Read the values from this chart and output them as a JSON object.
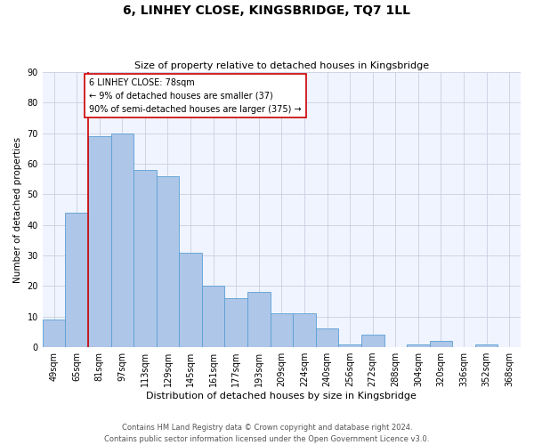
{
  "title": "6, LINHEY CLOSE, KINGSBRIDGE, TQ7 1LL",
  "subtitle": "Size of property relative to detached houses in Kingsbridge",
  "xlabel": "Distribution of detached houses by size in Kingsbridge",
  "ylabel": "Number of detached properties",
  "categories": [
    "49sqm",
    "65sqm",
    "81sqm",
    "97sqm",
    "113sqm",
    "129sqm",
    "145sqm",
    "161sqm",
    "177sqm",
    "193sqm",
    "209sqm",
    "224sqm",
    "240sqm",
    "256sqm",
    "272sqm",
    "288sqm",
    "304sqm",
    "320sqm",
    "336sqm",
    "352sqm",
    "368sqm"
  ],
  "values": [
    9,
    44,
    69,
    70,
    58,
    56,
    31,
    20,
    16,
    18,
    11,
    11,
    6,
    1,
    4,
    0,
    1,
    2,
    0,
    1,
    0
  ],
  "bar_color": "#aec6e8",
  "bar_edge_color": "#5a9fd4",
  "vline_x_index": 1.5,
  "vline_color": "#cc0000",
  "annotation_text": "6 LINHEY CLOSE: 78sqm\n← 9% of detached houses are smaller (37)\n90% of semi-detached houses are larger (375) →",
  "annotation_box_color": "#ffffff",
  "annotation_box_edge": "#cc0000",
  "ylim": [
    0,
    90
  ],
  "yticks": [
    0,
    10,
    20,
    30,
    40,
    50,
    60,
    70,
    80,
    90
  ],
  "footer": "Contains HM Land Registry data © Crown copyright and database right 2024.\nContains public sector information licensed under the Open Government Licence v3.0.",
  "bg_color": "#f0f4ff",
  "grid_color": "#c8d0e0",
  "title_fontsize": 10,
  "subtitle_fontsize": 8,
  "xlabel_fontsize": 8,
  "ylabel_fontsize": 7.5,
  "tick_fontsize": 7,
  "annotation_fontsize": 7,
  "footer_fontsize": 6
}
